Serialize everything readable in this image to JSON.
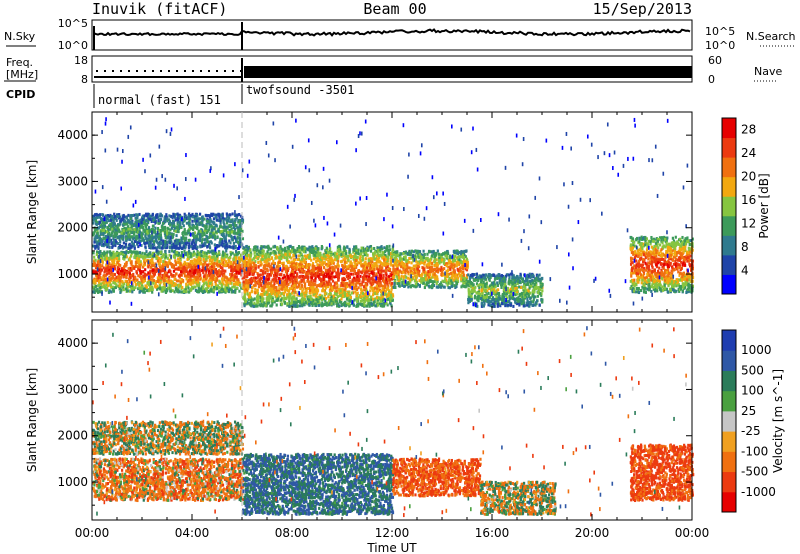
{
  "header": {
    "station": "Inuvik (fitACF)",
    "beam": "Beam 00",
    "date": "15/Sep/2013"
  },
  "nsky_panel": {
    "label": "N.Sky",
    "left_ticks": [
      "10^5",
      "10^0"
    ],
    "right_ticks": [
      "10^5",
      "10^0"
    ],
    "right_label": "N.Search"
  },
  "freq_panel": {
    "label_line1": "Freq.",
    "label_line2": "[MHz]",
    "left_ticks": [
      "18",
      "8"
    ],
    "right_ticks": [
      "60",
      "0"
    ],
    "right_label": "Nave"
  },
  "cpid": {
    "label": "CPID",
    "modes": [
      {
        "name": "normal (fast) 151",
        "start_h": 0,
        "end_h": 6
      },
      {
        "name": "twofsound -3501",
        "start_h": 6,
        "end_h": 24
      }
    ]
  },
  "colors": {
    "power_scale": [
      "#0000ff",
      "#1f44a8",
      "#2f7a8e",
      "#3c9a5a",
      "#86c540",
      "#f2a810",
      "#f07010",
      "#ec3a10",
      "#e60000"
    ],
    "velocity_scale": [
      "#1f3db0",
      "#2f58a6",
      "#2b7c5a",
      "#4aa040",
      "#c6c6c6",
      "#f0a020",
      "#f07010",
      "#ec3a10",
      "#e60000"
    ]
  },
  "chart_data": [
    {
      "type": "heatmap",
      "title": "Power",
      "xlabel": "",
      "ylabel": "Slant Range [km]",
      "x_ticks": [
        "00:00",
        "04:00",
        "08:00",
        "12:00",
        "16:00",
        "20:00",
        "00:00"
      ],
      "xlim_hours": [
        0,
        24
      ],
      "y_ticks": [
        1000,
        2000,
        3000,
        4000
      ],
      "ylim": [
        180,
        4500
      ],
      "colorbar": {
        "label": "Power [dB]",
        "ticks": [
          4,
          8,
          12,
          16,
          20,
          24,
          28
        ],
        "range": [
          0,
          30
        ]
      },
      "bands": [
        {
          "start_h": 0.0,
          "end_h": 6.0,
          "range_lo_km": 600,
          "range_hi_km": 1500,
          "peak_db": 28
        },
        {
          "start_h": 0.0,
          "end_h": 6.0,
          "range_lo_km": 1550,
          "range_hi_km": 2300,
          "peak_db": 12
        },
        {
          "start_h": 6.0,
          "end_h": 12.0,
          "range_lo_km": 300,
          "range_hi_km": 1600,
          "peak_db": 28
        },
        {
          "start_h": 12.0,
          "end_h": 15.0,
          "range_lo_km": 700,
          "range_hi_km": 1500,
          "peak_db": 24
        },
        {
          "start_h": 15.0,
          "end_h": 18.0,
          "range_lo_km": 300,
          "range_hi_km": 1000,
          "peak_db": 16
        },
        {
          "start_h": 21.5,
          "end_h": 24.0,
          "range_lo_km": 600,
          "range_hi_km": 1800,
          "peak_db": 28
        }
      ]
    },
    {
      "type": "heatmap",
      "title": "Velocity",
      "xlabel": "Time UT",
      "ylabel": "Slant Range [km]",
      "x_ticks": [
        "00:00",
        "04:00",
        "08:00",
        "12:00",
        "16:00",
        "20:00",
        "00:00"
      ],
      "xlim_hours": [
        0,
        24
      ],
      "y_ticks": [
        1000,
        2000,
        3000,
        4000
      ],
      "ylim": [
        180,
        4500
      ],
      "colorbar": {
        "label": "Velocity [m s^-1]",
        "ticks": [
          1000,
          500,
          100,
          25,
          -25,
          -100,
          -500,
          -1000
        ]
      },
      "bands": [
        {
          "start_h": 0.0,
          "end_h": 6.0,
          "range_lo_km": 600,
          "range_hi_km": 1500,
          "vel": -150
        },
        {
          "start_h": 0.0,
          "end_h": 6.0,
          "range_lo_km": 1600,
          "range_hi_km": 2300,
          "vel": 0
        },
        {
          "start_h": 6.0,
          "end_h": 12.0,
          "range_lo_km": 300,
          "range_hi_km": 1600,
          "vel": 300
        },
        {
          "start_h": 12.0,
          "end_h": 15.5,
          "range_lo_km": 700,
          "range_hi_km": 1500,
          "vel": -300
        },
        {
          "start_h": 15.5,
          "end_h": 18.5,
          "range_lo_km": 300,
          "range_hi_km": 1000,
          "vel": 0
        },
        {
          "start_h": 21.5,
          "end_h": 24.0,
          "range_lo_km": 600,
          "range_hi_km": 1800,
          "vel": -400
        }
      ]
    }
  ]
}
